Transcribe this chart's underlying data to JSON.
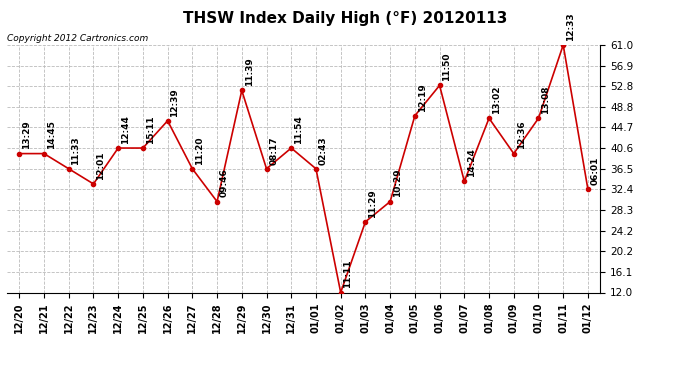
{
  "title": "THSW Index Daily High (°F) 20120113",
  "copyright": "Copyright 2012 Cartronics.com",
  "xlabels": [
    "12/20",
    "12/21",
    "12/22",
    "12/23",
    "12/24",
    "12/25",
    "12/26",
    "12/27",
    "12/28",
    "12/29",
    "12/30",
    "12/31",
    "01/01",
    "01/02",
    "01/03",
    "01/04",
    "01/05",
    "01/06",
    "01/07",
    "01/08",
    "01/09",
    "01/10",
    "01/11",
    "01/12"
  ],
  "yvalues": [
    39.5,
    39.5,
    36.5,
    33.5,
    40.6,
    40.6,
    46.0,
    36.5,
    30.0,
    52.0,
    36.5,
    40.6,
    36.5,
    12.0,
    26.0,
    30.0,
    47.0,
    53.0,
    34.0,
    46.5,
    39.5,
    46.5,
    61.0,
    32.4
  ],
  "annotations": [
    "13:29",
    "14:45",
    "11:33",
    "12:01",
    "12:44",
    "15:11",
    "12:39",
    "11:20",
    "09:46",
    "11:39",
    "08:17",
    "11:54",
    "02:43",
    "11:11",
    "11:29",
    "10:29",
    "12:19",
    "11:50",
    "14:24",
    "13:02",
    "12:36",
    "13:08",
    "12:33",
    "06:01"
  ],
  "ylim": [
    12.0,
    61.0
  ],
  "yticks": [
    12.0,
    16.1,
    20.2,
    24.2,
    28.3,
    32.4,
    36.5,
    40.6,
    44.7,
    48.8,
    52.8,
    56.9,
    61.0
  ],
  "line_color": "#cc0000",
  "marker_color": "#cc0000",
  "bg_color": "#ffffff",
  "grid_color": "#bbbbbb",
  "title_fontsize": 11,
  "annotation_fontsize": 6.5,
  "xlabel_fontsize": 7,
  "ylabel_fontsize": 7.5,
  "copyright_fontsize": 6.5
}
